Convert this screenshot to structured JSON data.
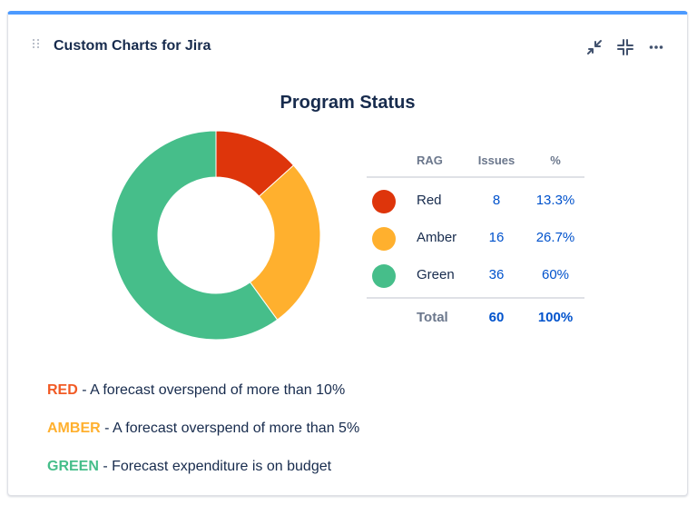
{
  "gadget": {
    "title": "Custom Charts for Jira",
    "accent_color": "#4c9aff"
  },
  "header_icons": [
    "minimize-arrows-icon",
    "collapse-icon",
    "more-icon"
  ],
  "chart_data": {
    "type": "pie",
    "title": "Program Status",
    "categories": [
      "Red",
      "Amber",
      "Green"
    ],
    "values": [
      8,
      16,
      36
    ],
    "percentages": [
      "13.3%",
      "26.7%",
      "60%"
    ],
    "colors": [
      "#de350b",
      "#ffb02e",
      "#46be8a"
    ],
    "table": {
      "headers": [
        "RAG",
        "Issues",
        "%"
      ],
      "total_label": "Total",
      "total_issues": "60",
      "total_pct": "100%"
    }
  },
  "legend": [
    {
      "keyword": "RED",
      "text": " - A forecast overspend of more than 10%",
      "color": "#f15a24"
    },
    {
      "keyword": "AMBER",
      "text": " - A forecast overspend of more than 5%",
      "color": "#ffb02e"
    },
    {
      "keyword": "GREEN",
      "text": " - Forecast expenditure is on budget",
      "color": "#46be8a"
    }
  ]
}
